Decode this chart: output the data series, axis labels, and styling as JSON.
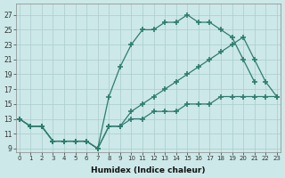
{
  "bg_color": "#cce8e8",
  "grid_color": "#aacccc",
  "line_color": "#2e7d6e",
  "xlabel": "Humidex (Indice chaleur)",
  "yticks": [
    9,
    11,
    13,
    15,
    17,
    19,
    21,
    23,
    25,
    27
  ],
  "xticks": [
    0,
    1,
    2,
    3,
    4,
    5,
    6,
    7,
    8,
    9,
    10,
    11,
    12,
    13,
    14,
    15,
    16,
    17,
    18,
    19,
    20,
    21,
    22,
    23
  ],
  "xlim": [
    -0.3,
    23.3
  ],
  "ylim": [
    8.5,
    28.5
  ],
  "line1_x": [
    0,
    1,
    2,
    3,
    4,
    5,
    6,
    7,
    8,
    9,
    10,
    11,
    12,
    13,
    14,
    15,
    16,
    17,
    18,
    19,
    20,
    21
  ],
  "line1_y": [
    13,
    12,
    12,
    10,
    10,
    10,
    10,
    9,
    16,
    20,
    23,
    25,
    25,
    26,
    26,
    27,
    26,
    26,
    25,
    24,
    21,
    18
  ],
  "line2_x": [
    0,
    1,
    2,
    3,
    4,
    5,
    6,
    7,
    8,
    9,
    10,
    11,
    12,
    13,
    14,
    15,
    16,
    17,
    18,
    19,
    20,
    21,
    22,
    23
  ],
  "line2_y": [
    13,
    12,
    12,
    10,
    10,
    10,
    10,
    9,
    12,
    12,
    14,
    15,
    16,
    17,
    18,
    19,
    20,
    21,
    22,
    23,
    24,
    21,
    18,
    16
  ],
  "line3_x": [
    0,
    1,
    2,
    3,
    4,
    5,
    6,
    7,
    8,
    9,
    10,
    11,
    12,
    13,
    14,
    15,
    16,
    17,
    18,
    19,
    20,
    21,
    22,
    23
  ],
  "line3_y": [
    13,
    12,
    12,
    10,
    10,
    10,
    10,
    9,
    12,
    12,
    13,
    13,
    14,
    14,
    14,
    15,
    15,
    15,
    16,
    16,
    16,
    16,
    16,
    16
  ]
}
